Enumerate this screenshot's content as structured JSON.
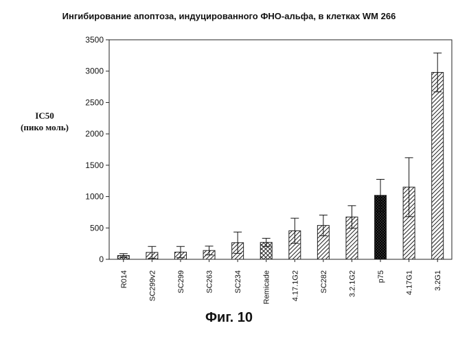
{
  "chart_data": {
    "type": "bar",
    "title": "Ингибирование апоптоза, индуцированного ФНО-альфа, в клетках WM 266",
    "ylabel_line1": "IC50",
    "ylabel_line2": "(пико моль)",
    "xlabel": "",
    "ylim": [
      0,
      3500
    ],
    "yticks": [
      0,
      500,
      1000,
      1500,
      2000,
      2500,
      3000,
      3500
    ],
    "categories": [
      "R014",
      "SC299v2",
      "SC299",
      "SC263",
      "SC234",
      "Remicade",
      "4.17.1G2",
      "SC282",
      "3.2.1G2",
      "p75",
      "4.17G1",
      "3.2G1"
    ],
    "values": [
      60,
      110,
      115,
      140,
      265,
      270,
      455,
      540,
      675,
      1020,
      1150,
      2980
    ],
    "errors": [
      30,
      95,
      90,
      70,
      170,
      65,
      200,
      165,
      180,
      255,
      470,
      310
    ],
    "patterns": [
      "crosshatch",
      "hatch",
      "hatch",
      "hatch",
      "hatch",
      "crosshatch",
      "hatch",
      "hatch",
      "hatch",
      "dense",
      "hatch",
      "hatch"
    ],
    "grid": false,
    "legend": "none"
  },
  "caption": "Фиг. 10"
}
